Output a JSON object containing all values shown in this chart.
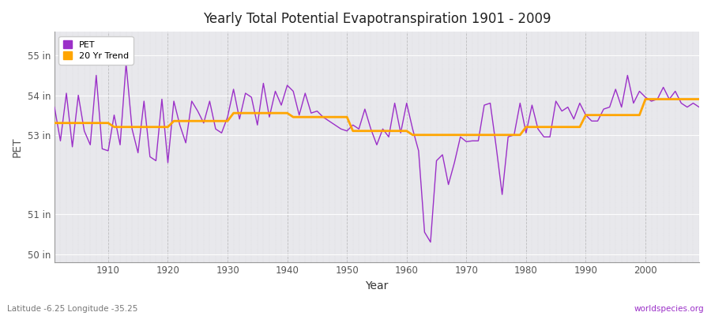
{
  "title": "Yearly Total Potential Evapotranspiration 1901 - 2009",
  "xlabel": "Year",
  "ylabel": "PET",
  "bottom_left_label": "Latitude -6.25 Longitude -35.25",
  "bottom_right_label": "worldspecies.org",
  "pet_color": "#9B30C8",
  "trend_color": "#FFA500",
  "outer_bg_color": "#FFFFFF",
  "plot_bg_color": "#E8E8EC",
  "ylim": [
    49.8,
    55.6
  ],
  "ytick_positions": [
    50,
    51,
    53,
    54,
    55
  ],
  "ytick_labels": [
    "50 in",
    "51 in",
    "53 in",
    "54 in",
    "55 in"
  ],
  "years": [
    1901,
    1902,
    1903,
    1904,
    1905,
    1906,
    1907,
    1908,
    1909,
    1910,
    1911,
    1912,
    1913,
    1914,
    1915,
    1916,
    1917,
    1918,
    1919,
    1920,
    1921,
    1922,
    1923,
    1924,
    1925,
    1926,
    1927,
    1928,
    1929,
    1930,
    1931,
    1932,
    1933,
    1934,
    1935,
    1936,
    1937,
    1938,
    1939,
    1940,
    1941,
    1942,
    1943,
    1944,
    1945,
    1946,
    1947,
    1948,
    1949,
    1950,
    1951,
    1952,
    1953,
    1954,
    1955,
    1956,
    1957,
    1958,
    1959,
    1960,
    1961,
    1962,
    1963,
    1964,
    1965,
    1966,
    1967,
    1968,
    1969,
    1970,
    1971,
    1972,
    1973,
    1974,
    1975,
    1976,
    1977,
    1978,
    1979,
    1980,
    1981,
    1982,
    1983,
    1984,
    1985,
    1986,
    1987,
    1988,
    1989,
    1990,
    1991,
    1992,
    1993,
    1994,
    1995,
    1996,
    1997,
    1998,
    1999,
    2000,
    2001,
    2002,
    2003,
    2004,
    2005,
    2006,
    2007,
    2008,
    2009
  ],
  "pet": [
    53.7,
    52.85,
    54.05,
    52.7,
    54.0,
    53.1,
    52.75,
    54.5,
    52.65,
    52.6,
    53.5,
    52.75,
    54.8,
    53.15,
    52.55,
    53.85,
    52.45,
    52.35,
    53.9,
    52.3,
    53.85,
    53.25,
    52.8,
    53.85,
    53.6,
    53.3,
    53.85,
    53.15,
    53.05,
    53.45,
    54.15,
    53.4,
    54.05,
    53.95,
    53.25,
    54.3,
    53.45,
    54.1,
    53.75,
    54.25,
    54.1,
    53.5,
    54.05,
    53.55,
    53.6,
    53.45,
    53.35,
    53.25,
    53.15,
    53.1,
    53.25,
    53.15,
    53.65,
    53.15,
    52.75,
    53.15,
    52.95,
    53.8,
    53.05,
    53.8,
    53.15,
    52.6,
    50.55,
    50.3,
    52.35,
    52.5,
    51.75,
    52.3,
    52.95,
    52.83,
    52.85,
    52.85,
    53.75,
    53.8,
    52.7,
    51.5,
    52.95,
    53.0,
    53.8,
    53.05,
    53.75,
    53.15,
    52.95,
    52.95,
    53.85,
    53.6,
    53.7,
    53.4,
    53.8,
    53.5,
    53.35,
    53.35,
    53.65,
    53.7,
    54.15,
    53.7,
    54.5,
    53.8,
    54.1,
    53.95,
    53.85,
    53.9,
    54.2,
    53.9,
    54.1,
    53.8,
    53.7,
    53.8,
    53.7
  ],
  "trend": [
    53.3,
    53.3,
    53.3,
    53.3,
    53.3,
    53.3,
    53.3,
    53.3,
    53.3,
    53.3,
    53.2,
    53.2,
    53.2,
    53.2,
    53.2,
    53.2,
    53.2,
    53.2,
    53.2,
    53.2,
    53.35,
    53.35,
    53.35,
    53.35,
    53.35,
    53.35,
    53.35,
    53.35,
    53.35,
    53.35,
    53.55,
    53.55,
    53.55,
    53.55,
    53.55,
    53.55,
    53.55,
    53.55,
    53.55,
    53.55,
    53.45,
    53.45,
    53.45,
    53.45,
    53.45,
    53.45,
    53.45,
    53.45,
    53.45,
    53.45,
    53.1,
    53.1,
    53.1,
    53.1,
    53.1,
    53.1,
    53.1,
    53.1,
    53.1,
    53.1,
    53.0,
    53.0,
    53.0,
    53.0,
    53.0,
    53.0,
    53.0,
    53.0,
    53.0,
    53.0,
    53.0,
    53.0,
    53.0,
    53.0,
    53.0,
    53.0,
    53.0,
    53.0,
    53.0,
    53.2,
    53.2,
    53.2,
    53.2,
    53.2,
    53.2,
    53.2,
    53.2,
    53.2,
    53.2,
    53.5,
    53.5,
    53.5,
    53.5,
    53.5,
    53.5,
    53.5,
    53.5,
    53.5,
    53.5,
    53.9,
    53.9,
    53.9,
    53.9,
    53.9,
    53.9,
    53.9,
    53.9,
    53.9,
    53.9
  ],
  "xticks": [
    1910,
    1920,
    1930,
    1940,
    1950,
    1960,
    1970,
    1980,
    1990,
    2000
  ]
}
